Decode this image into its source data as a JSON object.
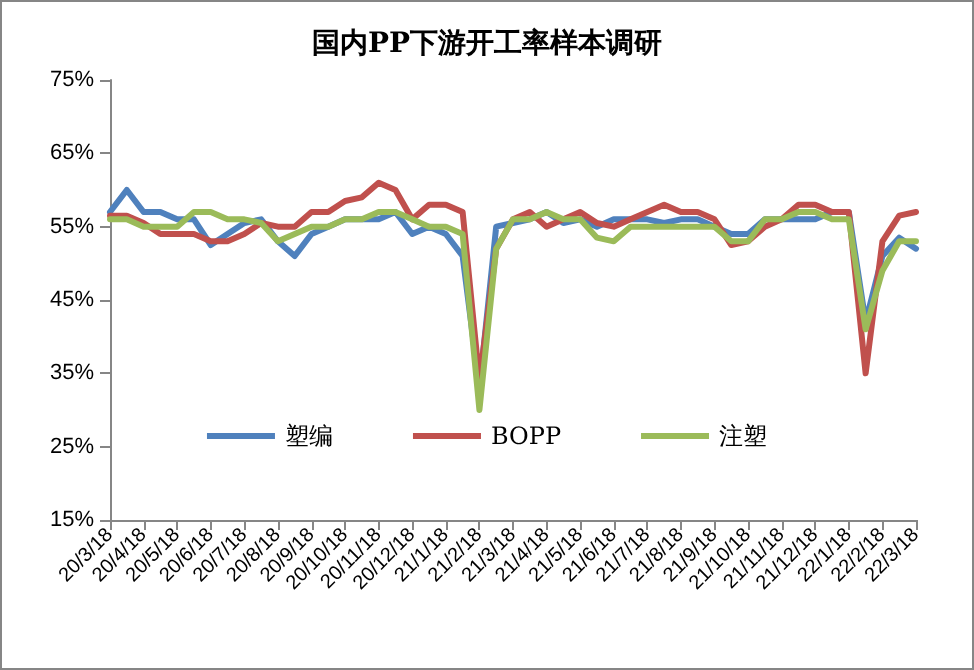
{
  "chart_data": {
    "type": "line",
    "title": "国内PP下游开工率样本调研",
    "categories": [
      "20/3/18",
      null,
      "20/4/18",
      null,
      "20/5/18",
      null,
      "20/6/18",
      null,
      "20/7/18",
      null,
      "20/8/18",
      null,
      "20/9/18",
      null,
      "20/10/18",
      null,
      "20/11/18",
      null,
      "20/12/18",
      null,
      "21/1/18",
      null,
      "21/2/18",
      null,
      "21/3/18",
      null,
      "21/4/18",
      null,
      "21/5/18",
      null,
      "21/6/18",
      null,
      "21/7/18",
      null,
      "21/8/18",
      null,
      "21/9/18",
      null,
      "21/10/18",
      null,
      "21/11/18",
      null,
      "21/12/18",
      null,
      "22/1/18",
      null,
      "22/2/18",
      null,
      "22/3/18"
    ],
    "series": [
      {
        "name": "塑编",
        "color": "#4f81bd",
        "values": [
          57,
          60,
          57,
          57,
          56,
          56,
          52.5,
          54,
          55.5,
          56,
          53,
          51,
          54,
          55,
          56,
          56,
          56,
          57,
          54,
          55,
          54,
          51,
          33,
          55,
          55.5,
          56,
          57,
          55.5,
          56,
          55,
          56,
          56,
          56,
          55.5,
          56,
          56,
          55,
          54,
          54,
          56,
          56,
          56,
          56,
          57,
          57,
          42,
          51,
          53.5,
          52
        ]
      },
      {
        "name": "BOPP",
        "color": "#c0504d",
        "values": [
          56.5,
          56.5,
          55.5,
          54,
          54,
          54,
          53,
          53,
          54,
          55.5,
          55,
          55,
          57,
          57,
          58.5,
          59,
          61,
          60,
          56,
          58,
          58,
          57,
          34,
          52,
          56,
          57,
          55,
          56,
          57,
          55.5,
          55,
          56,
          57,
          58,
          57,
          57,
          56,
          52.5,
          53,
          55,
          56,
          58,
          58,
          57,
          57,
          35,
          53,
          56.5,
          57
        ]
      },
      {
        "name": "注塑",
        "color": "#9bbb59",
        "values": [
          56,
          56,
          55,
          55,
          55,
          57,
          57,
          56,
          56,
          55.5,
          53,
          54,
          55,
          55,
          56,
          56,
          57,
          57,
          56,
          55,
          55,
          54,
          30,
          52,
          56,
          56,
          57,
          56,
          56,
          53.5,
          53,
          55,
          55,
          55,
          55,
          55,
          55,
          53,
          53,
          56,
          56,
          57,
          57,
          56,
          56,
          41,
          49,
          53,
          53
        ]
      }
    ],
    "ylim": [
      15,
      75
    ],
    "yticks": [
      {
        "value": 15,
        "label": "15%"
      },
      {
        "value": 25,
        "label": "25%"
      },
      {
        "value": 35,
        "label": "35%"
      },
      {
        "value": 45,
        "label": "45%"
      },
      {
        "value": 55,
        "label": "55%"
      },
      {
        "value": 65,
        "label": "65%"
      },
      {
        "value": 75,
        "label": "75%"
      }
    ],
    "grid": false,
    "legend": "bottom",
    "marker": "none",
    "line_style": "solid"
  }
}
